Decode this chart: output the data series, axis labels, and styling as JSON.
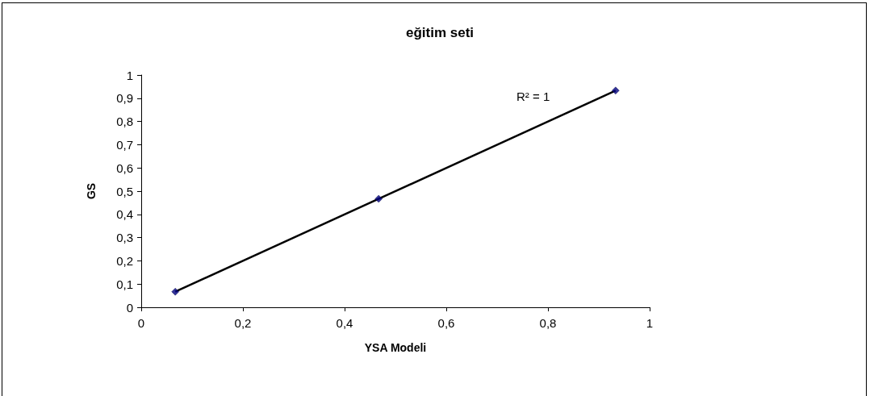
{
  "chart_data": {
    "type": "scatter",
    "title": "eğitim seti",
    "xlabel": "YSA Modeli",
    "ylabel": "GS",
    "annotations": [
      "R² = 1"
    ],
    "marker": "diamond",
    "xlim": [
      0,
      1
    ],
    "ylim": [
      0,
      1
    ],
    "xticks": [
      0,
      {
        "value": 0.2,
        "label": "0,2"
      },
      {
        "value": 0.4,
        "label": "0,4"
      },
      {
        "value": 0.6,
        "label": "0,6"
      },
      {
        "value": 0.8,
        "label": "0,8"
      },
      1
    ],
    "yticks": [
      0,
      {
        "value": 0.1,
        "label": "0,1"
      },
      {
        "value": 0.2,
        "label": "0,2"
      },
      {
        "value": 0.3,
        "label": "0,3"
      },
      {
        "value": 0.4,
        "label": "0,4"
      },
      {
        "value": 0.5,
        "label": "0,5"
      },
      {
        "value": 0.6,
        "label": "0,6"
      },
      {
        "value": 0.7,
        "label": "0,7"
      },
      {
        "value": 0.8,
        "label": "0,8"
      },
      {
        "value": 0.9,
        "label": "0,9"
      },
      1
    ],
    "series": [
      {
        "type": "line",
        "marker": "none",
        "color": "#000000",
        "x": [
          0.067,
          0.933
        ],
        "values": [
          0.067,
          0.933
        ]
      },
      {
        "color": "#000080",
        "x": [
          0.067,
          0.467,
          0.933
        ],
        "values": [
          0.067,
          0.467,
          0.933
        ]
      }
    ]
  }
}
